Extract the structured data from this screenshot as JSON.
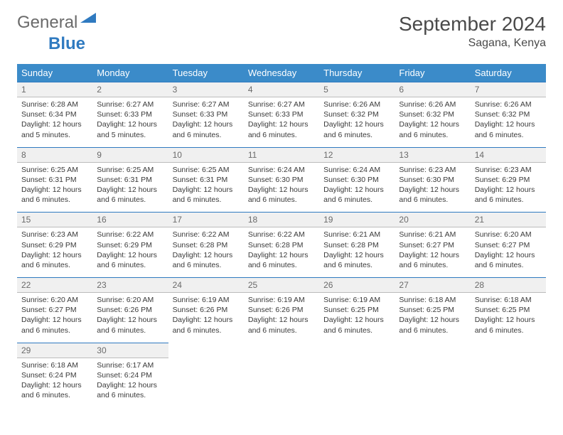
{
  "logo": {
    "general": "General",
    "blue": "Blue"
  },
  "title": "September 2024",
  "location": "Sagana, Kenya",
  "weekdays": [
    "Sunday",
    "Monday",
    "Tuesday",
    "Wednesday",
    "Thursday",
    "Friday",
    "Saturday"
  ],
  "colors": {
    "header_bg": "#3b8bc9",
    "header_text": "#ffffff",
    "daynum_bg": "#f0f0f0",
    "daynum_border_top": "#2f7ac0",
    "cell_border": "#bcbcbc",
    "text": "#3a3a3a",
    "logo_gray": "#6a6a6a",
    "logo_blue": "#2f7ac0"
  },
  "weeks": [
    [
      {
        "n": "1",
        "sunrise": "6:28 AM",
        "sunset": "6:34 PM",
        "daylight": "12 hours and 5 minutes."
      },
      {
        "n": "2",
        "sunrise": "6:27 AM",
        "sunset": "6:33 PM",
        "daylight": "12 hours and 5 minutes."
      },
      {
        "n": "3",
        "sunrise": "6:27 AM",
        "sunset": "6:33 PM",
        "daylight": "12 hours and 6 minutes."
      },
      {
        "n": "4",
        "sunrise": "6:27 AM",
        "sunset": "6:33 PM",
        "daylight": "12 hours and 6 minutes."
      },
      {
        "n": "5",
        "sunrise": "6:26 AM",
        "sunset": "6:32 PM",
        "daylight": "12 hours and 6 minutes."
      },
      {
        "n": "6",
        "sunrise": "6:26 AM",
        "sunset": "6:32 PM",
        "daylight": "12 hours and 6 minutes."
      },
      {
        "n": "7",
        "sunrise": "6:26 AM",
        "sunset": "6:32 PM",
        "daylight": "12 hours and 6 minutes."
      }
    ],
    [
      {
        "n": "8",
        "sunrise": "6:25 AM",
        "sunset": "6:31 PM",
        "daylight": "12 hours and 6 minutes."
      },
      {
        "n": "9",
        "sunrise": "6:25 AM",
        "sunset": "6:31 PM",
        "daylight": "12 hours and 6 minutes."
      },
      {
        "n": "10",
        "sunrise": "6:25 AM",
        "sunset": "6:31 PM",
        "daylight": "12 hours and 6 minutes."
      },
      {
        "n": "11",
        "sunrise": "6:24 AM",
        "sunset": "6:30 PM",
        "daylight": "12 hours and 6 minutes."
      },
      {
        "n": "12",
        "sunrise": "6:24 AM",
        "sunset": "6:30 PM",
        "daylight": "12 hours and 6 minutes."
      },
      {
        "n": "13",
        "sunrise": "6:23 AM",
        "sunset": "6:30 PM",
        "daylight": "12 hours and 6 minutes."
      },
      {
        "n": "14",
        "sunrise": "6:23 AM",
        "sunset": "6:29 PM",
        "daylight": "12 hours and 6 minutes."
      }
    ],
    [
      {
        "n": "15",
        "sunrise": "6:23 AM",
        "sunset": "6:29 PM",
        "daylight": "12 hours and 6 minutes."
      },
      {
        "n": "16",
        "sunrise": "6:22 AM",
        "sunset": "6:29 PM",
        "daylight": "12 hours and 6 minutes."
      },
      {
        "n": "17",
        "sunrise": "6:22 AM",
        "sunset": "6:28 PM",
        "daylight": "12 hours and 6 minutes."
      },
      {
        "n": "18",
        "sunrise": "6:22 AM",
        "sunset": "6:28 PM",
        "daylight": "12 hours and 6 minutes."
      },
      {
        "n": "19",
        "sunrise": "6:21 AM",
        "sunset": "6:28 PM",
        "daylight": "12 hours and 6 minutes."
      },
      {
        "n": "20",
        "sunrise": "6:21 AM",
        "sunset": "6:27 PM",
        "daylight": "12 hours and 6 minutes."
      },
      {
        "n": "21",
        "sunrise": "6:20 AM",
        "sunset": "6:27 PM",
        "daylight": "12 hours and 6 minutes."
      }
    ],
    [
      {
        "n": "22",
        "sunrise": "6:20 AM",
        "sunset": "6:27 PM",
        "daylight": "12 hours and 6 minutes."
      },
      {
        "n": "23",
        "sunrise": "6:20 AM",
        "sunset": "6:26 PM",
        "daylight": "12 hours and 6 minutes."
      },
      {
        "n": "24",
        "sunrise": "6:19 AM",
        "sunset": "6:26 PM",
        "daylight": "12 hours and 6 minutes."
      },
      {
        "n": "25",
        "sunrise": "6:19 AM",
        "sunset": "6:26 PM",
        "daylight": "12 hours and 6 minutes."
      },
      {
        "n": "26",
        "sunrise": "6:19 AM",
        "sunset": "6:25 PM",
        "daylight": "12 hours and 6 minutes."
      },
      {
        "n": "27",
        "sunrise": "6:18 AM",
        "sunset": "6:25 PM",
        "daylight": "12 hours and 6 minutes."
      },
      {
        "n": "28",
        "sunrise": "6:18 AM",
        "sunset": "6:25 PM",
        "daylight": "12 hours and 6 minutes."
      }
    ],
    [
      {
        "n": "29",
        "sunrise": "6:18 AM",
        "sunset": "6:24 PM",
        "daylight": "12 hours and 6 minutes."
      },
      {
        "n": "30",
        "sunrise": "6:17 AM",
        "sunset": "6:24 PM",
        "daylight": "12 hours and 6 minutes."
      },
      null,
      null,
      null,
      null,
      null
    ]
  ],
  "labels": {
    "sunrise": "Sunrise: ",
    "sunset": "Sunset: ",
    "daylight": "Daylight: "
  }
}
